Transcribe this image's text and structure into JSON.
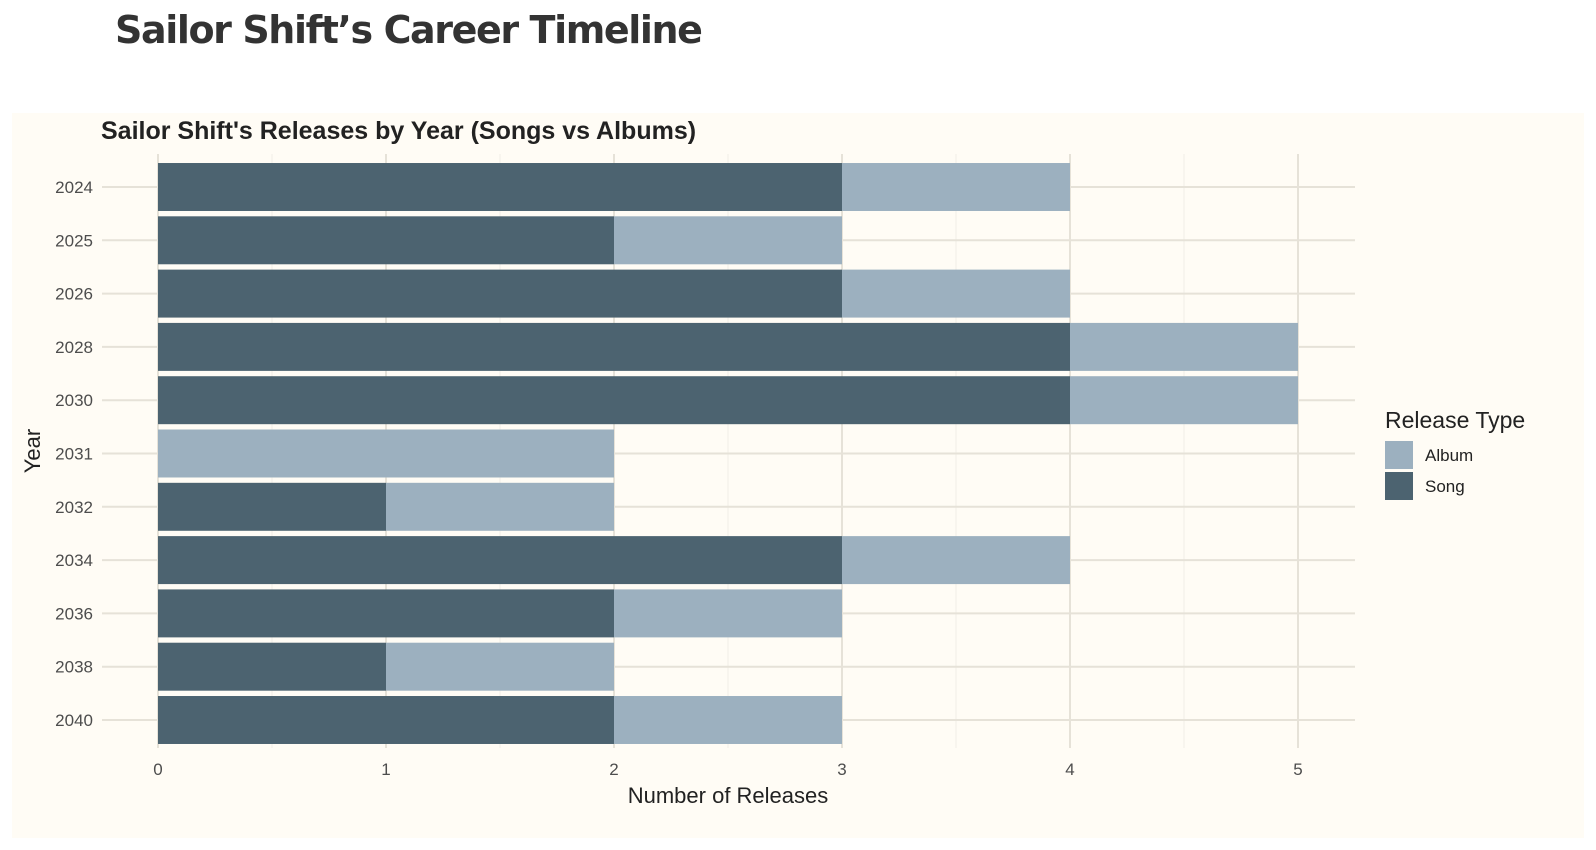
{
  "page_title": "Sailor Shift’s Career Timeline",
  "colors": {
    "song": "#4c6370",
    "album": "#9cb0bf",
    "panel_background": "#fffcf5",
    "grid_major": "#e6e2d8",
    "grid_minor": "#f1eee6"
  },
  "chart_data": {
    "type": "bar",
    "orientation": "horizontal",
    "stacked": true,
    "title": "Sailor Shift's Releases by Year (Songs vs Albums)",
    "xlabel": "Number of Releases",
    "ylabel": "Year",
    "xlim": [
      0,
      5.25
    ],
    "x_ticks": [
      "0",
      "1",
      "2",
      "3",
      "4",
      "5"
    ],
    "grid": true,
    "categories": [
      "2024",
      "2025",
      "2026",
      "2028",
      "2030",
      "2031",
      "2032",
      "2034",
      "2036",
      "2038",
      "2040"
    ],
    "series": [
      {
        "name": "Song",
        "values": [
          3,
          2,
          3,
          4,
          4,
          0,
          1,
          3,
          2,
          1,
          2
        ]
      },
      {
        "name": "Album",
        "values": [
          1,
          1,
          1,
          1,
          1,
          2,
          1,
          1,
          1,
          1,
          1
        ]
      }
    ],
    "legend": {
      "title": "Release Type",
      "placement": "right",
      "entries": [
        "Album",
        "Song"
      ]
    }
  }
}
